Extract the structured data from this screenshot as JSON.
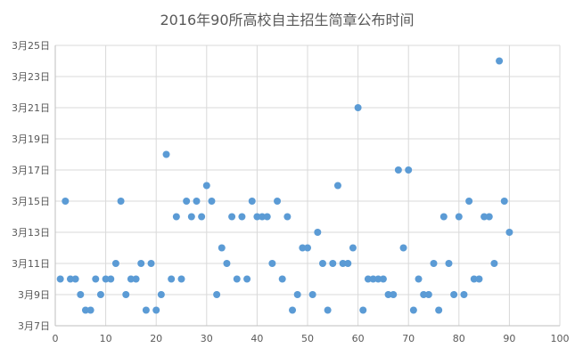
{
  "chart_data": {
    "type": "scatter",
    "title": "2016年90所高校自主招生简章公布时间",
    "xlabel": "",
    "ylabel": "",
    "xlim": [
      0,
      100
    ],
    "x_ticks": [
      0,
      10,
      20,
      30,
      40,
      50,
      60,
      70,
      80,
      90,
      100
    ],
    "ylim": [
      7,
      25
    ],
    "y_ticks": [
      7,
      9,
      11,
      13,
      15,
      17,
      19,
      21,
      23,
      25
    ],
    "y_tick_labels": [
      "3月7日",
      "3月9日",
      "3月11日",
      "3月13日",
      "3月15日",
      "3月17日",
      "3月19日",
      "3月21日",
      "3月23日",
      "3月25日"
    ],
    "grid": "horizontal",
    "legend": "none",
    "point_color": "#5b9bd5",
    "series": [
      {
        "x": [
          1,
          2,
          3,
          4,
          5,
          6,
          7,
          8,
          9,
          10,
          11,
          12,
          13,
          14,
          15,
          16,
          17,
          18,
          19,
          20,
          21,
          22,
          23,
          24,
          25,
          26,
          27,
          28,
          29,
          30,
          31,
          32,
          33,
          34,
          35,
          36,
          37,
          38,
          39,
          40,
          41,
          42,
          43,
          44,
          45,
          46,
          47,
          48,
          49,
          50,
          51,
          52,
          53,
          54,
          55,
          56,
          57,
          58,
          59,
          60,
          61,
          62,
          63,
          64,
          65,
          66,
          67,
          68,
          69,
          70,
          71,
          72,
          73,
          74,
          75,
          76,
          77,
          78,
          79,
          80,
          81,
          82,
          83,
          84,
          85,
          86,
          87,
          88,
          89,
          90
        ],
        "y": [
          10,
          15,
          10,
          10,
          9,
          8,
          8,
          10,
          9,
          10,
          10,
          11,
          15,
          9,
          10,
          10,
          11,
          8,
          11,
          8,
          9,
          18,
          10,
          14,
          10,
          15,
          14,
          15,
          14,
          16,
          15,
          9,
          12,
          11,
          14,
          10,
          14,
          10,
          15,
          14,
          14,
          14,
          11,
          15,
          10,
          14,
          8,
          9,
          12,
          12,
          9,
          13,
          11,
          8,
          11,
          16,
          11,
          11,
          12,
          21,
          8,
          10,
          10,
          10,
          10,
          9,
          9,
          17,
          12,
          17,
          8,
          10,
          9,
          9,
          11,
          8,
          14,
          11,
          9,
          14,
          9,
          15,
          10,
          10,
          14,
          14,
          11,
          24,
          15,
          13
        ]
      }
    ]
  }
}
